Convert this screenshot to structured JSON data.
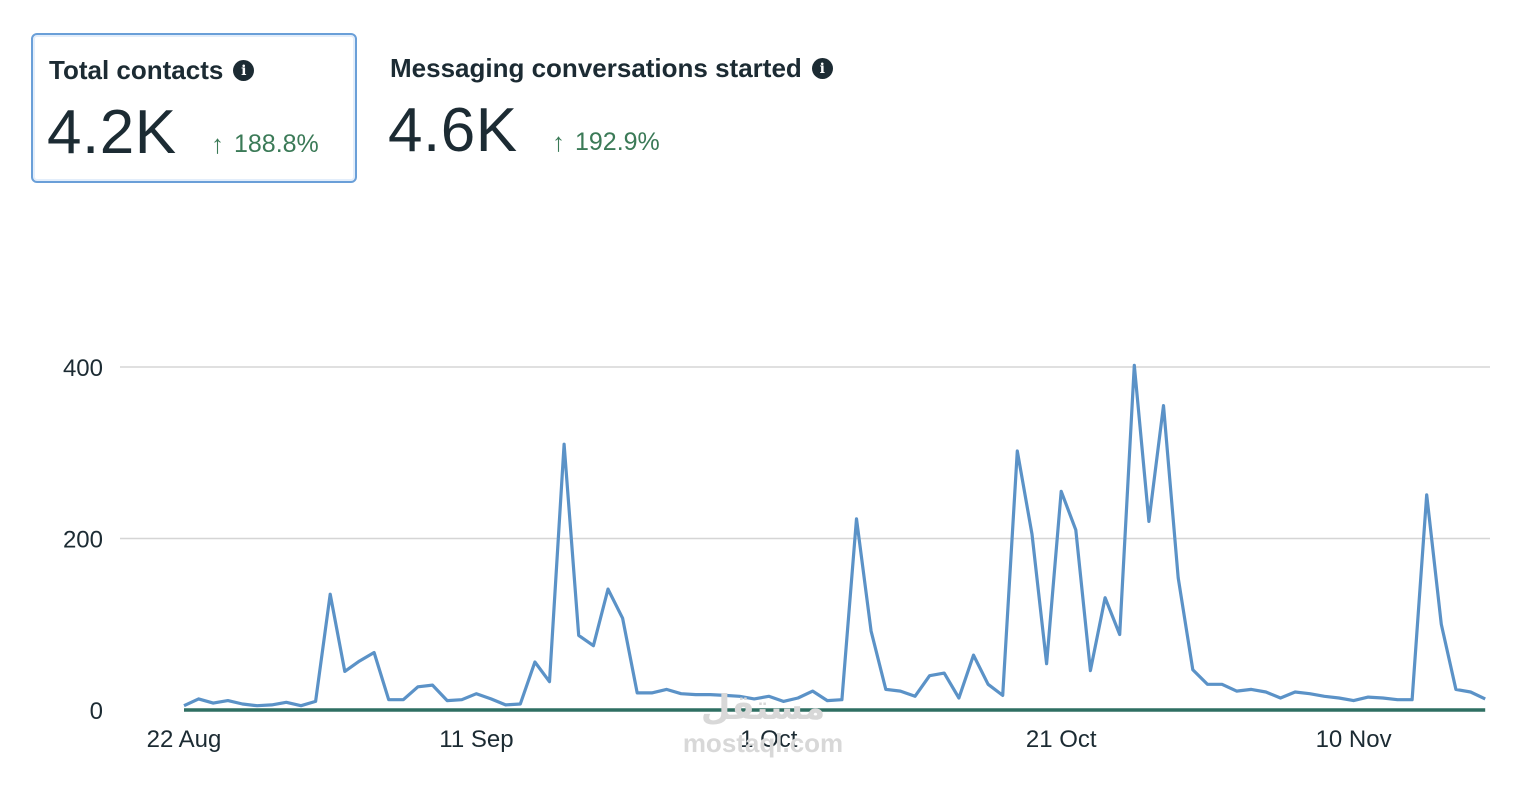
{
  "metrics": [
    {
      "title": "Total contacts",
      "value": "4.2K",
      "change": "188.8%",
      "selected": true,
      "info_icon": "info-icon",
      "trend_icon": "arrow-up-icon"
    },
    {
      "title": "Messaging conversations started",
      "value": "4.6K",
      "change": "192.9%",
      "selected": false,
      "info_icon": "info-icon",
      "trend_icon": "arrow-up-icon"
    }
  ],
  "watermark": {
    "logo": "مستقل",
    "text": "mostaql.com"
  },
  "chart_data": {
    "type": "line",
    "title": "",
    "xlabel": "",
    "ylabel": "",
    "x_start": "2023-08-22",
    "x_ticks": [
      "22 Aug",
      "11 Sep",
      "1 Oct",
      "21 Oct",
      "10 Nov"
    ],
    "y_ticks": [
      0,
      200,
      400
    ],
    "ylim": [
      0,
      410
    ],
    "grid": true,
    "legend": "none",
    "colors": {
      "series": "#5b92c7",
      "baseline": "#2f6f62",
      "grid": "#d5d5d5"
    },
    "series": [
      {
        "values": [
          5,
          13,
          8,
          11,
          7,
          5,
          6,
          9,
          5,
          10,
          135,
          45,
          57,
          67,
          12,
          12,
          27,
          29,
          11,
          12,
          19,
          13,
          6,
          7,
          56,
          33,
          310,
          87,
          75,
          141,
          107,
          20,
          20,
          24,
          19,
          18,
          18,
          17,
          16,
          13,
          16,
          10,
          14,
          22,
          11,
          12,
          223,
          92,
          24,
          22,
          16,
          40,
          43,
          14,
          64,
          30,
          17,
          302,
          205,
          54,
          255,
          210,
          46,
          131,
          88,
          402,
          220,
          355,
          154,
          47,
          30,
          30,
          22,
          24,
          21,
          14,
          21,
          19,
          16,
          14,
          11,
          15,
          14,
          12,
          12,
          251,
          100,
          24,
          21,
          13
        ]
      },
      {
        "name": "baseline",
        "values": [
          0,
          0,
          0,
          0,
          0,
          0,
          0,
          0,
          0,
          0,
          0,
          0,
          0,
          0,
          0,
          0,
          0,
          0,
          0,
          0,
          0,
          0,
          0,
          0,
          0,
          0,
          0,
          0,
          0,
          0,
          0,
          0,
          0,
          0,
          0,
          0,
          0,
          0,
          0,
          0,
          0,
          0,
          0,
          0,
          0,
          0,
          0,
          0,
          0,
          0,
          0,
          0,
          0,
          0,
          0,
          0,
          0,
          0,
          0,
          0,
          0,
          0,
          0,
          0,
          0,
          0,
          0,
          0,
          0,
          0,
          0,
          0,
          0,
          0,
          0,
          0,
          0,
          0,
          0,
          0,
          0,
          0,
          0,
          0,
          0,
          0,
          0,
          0,
          0,
          0
        ]
      }
    ]
  }
}
